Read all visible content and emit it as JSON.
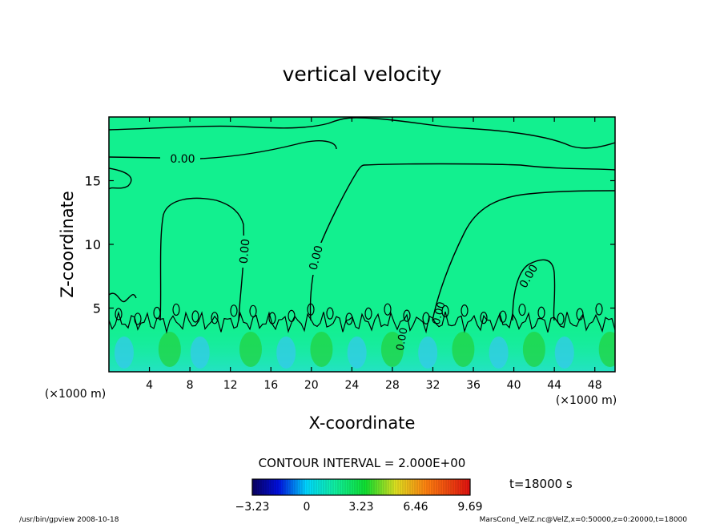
{
  "chart_data": {
    "type": "heatmap",
    "title": "vertical velocity",
    "xlabel": "X-coordinate",
    "ylabel": "Z-coordinate",
    "x_unit": "(×1000 m)",
    "z_unit": "(×1000 m)",
    "xlim": [
      0,
      50
    ],
    "ylim": [
      0,
      20
    ],
    "x_ticks": [
      "4",
      "8",
      "12",
      "16",
      "20",
      "24",
      "28",
      "32",
      "36",
      "40",
      "44",
      "48"
    ],
    "y_ticks": [
      "5",
      "10",
      "15"
    ],
    "contour_labels": [
      "0.00",
      "0.00",
      "0.00",
      "0.00",
      "0.00",
      "0.00"
    ],
    "contour_interval_text": "CONTOUR INTERVAL = 2.000E+00",
    "colorbar": {
      "min": -3.23,
      "max": 9.69,
      "tick_labels": [
        "−3.23",
        "0",
        "3.23",
        "6.46",
        "9.69"
      ],
      "colormap": "rainbow"
    },
    "time_label": "t=18000 s",
    "footer_left": "/usr/bin/gpview   2008-10-18",
    "footer_right": "MarsCond_VelZ.nc@VelZ,x=0:50000,z=0:20000,t=18000",
    "colors": {
      "background_field": "#12f08f",
      "contour": "#000000"
    },
    "grid": false
  }
}
